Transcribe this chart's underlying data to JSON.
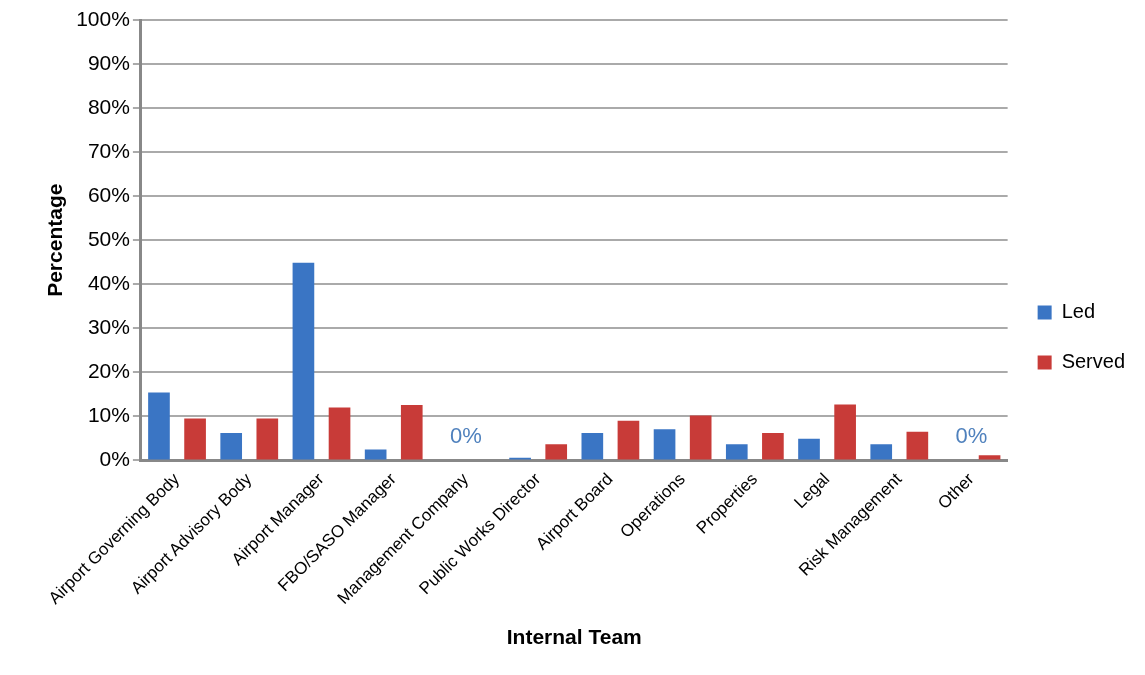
{
  "chart_data": {
    "type": "bar",
    "xlabel": "Internal Team",
    "ylabel": "Percentage",
    "categories": [
      "Airport Governing Body",
      "Airport Advisory Body",
      "Airport Manager",
      "FBO/SASO Manager",
      "Management Company",
      "Public Works Director",
      "Airport Board",
      "Operations",
      "Properties",
      "Legal",
      "Risk Management",
      "Other"
    ],
    "series": [
      {
        "name": "Led",
        "color": "#3a75c4",
        "values": [
          15.4,
          6.2,
          44.9,
          2.5,
          0,
          0.6,
          6.2,
          7.1,
          3.7,
          4.9,
          3.7,
          0
        ],
        "value_labels": [
          null,
          null,
          null,
          null,
          "0%",
          null,
          null,
          null,
          null,
          null,
          null,
          "0%"
        ]
      },
      {
        "name": "Served",
        "color": "#c83b38",
        "values": [
          9.5,
          9.5,
          12,
          12.6,
          0,
          3.7,
          9,
          10.2,
          6.2,
          12.7,
          6.5,
          1.2
        ]
      }
    ],
    "ylim": [
      0,
      100
    ],
    "yticks": [
      {
        "value": 0,
        "label": "0%"
      },
      {
        "value": 10,
        "label": "10%"
      },
      {
        "value": 20,
        "label": "20%"
      },
      {
        "value": 30,
        "label": "30%"
      },
      {
        "value": 40,
        "label": "40%"
      },
      {
        "value": 50,
        "label": "50%"
      },
      {
        "value": 60,
        "label": "60%"
      },
      {
        "value": 70,
        "label": "70%"
      },
      {
        "value": 80,
        "label": "80%"
      },
      {
        "value": 90,
        "label": "90%"
      },
      {
        "value": 100,
        "label": "100%"
      }
    ],
    "grid": "y",
    "legend": "right"
  }
}
